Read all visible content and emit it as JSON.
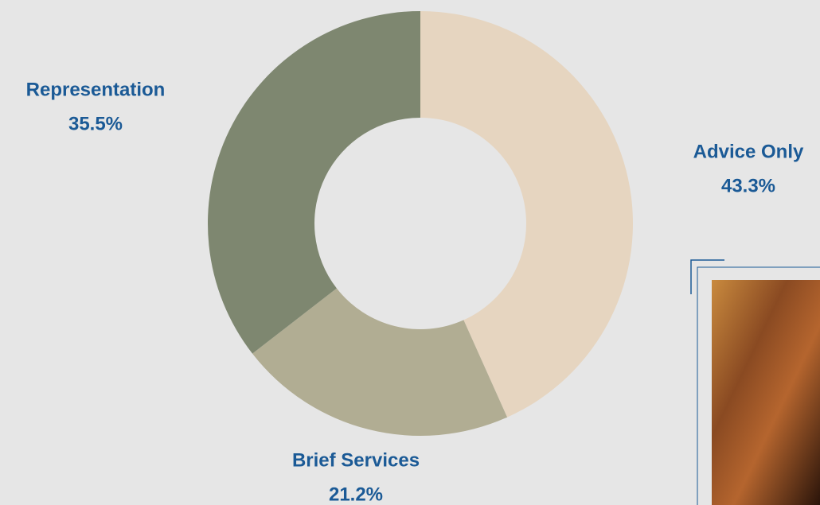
{
  "chart_data": {
    "type": "donut",
    "categories": [
      "Advice Only",
      "Brief Services",
      "Representation"
    ],
    "values": [
      43.3,
      21.2,
      35.5
    ],
    "value_labels": [
      "43.3%",
      "21.2%",
      "35.5%"
    ],
    "colors": [
      "#e6d5c0",
      "#b1ad93",
      "#7e8770"
    ]
  }
}
